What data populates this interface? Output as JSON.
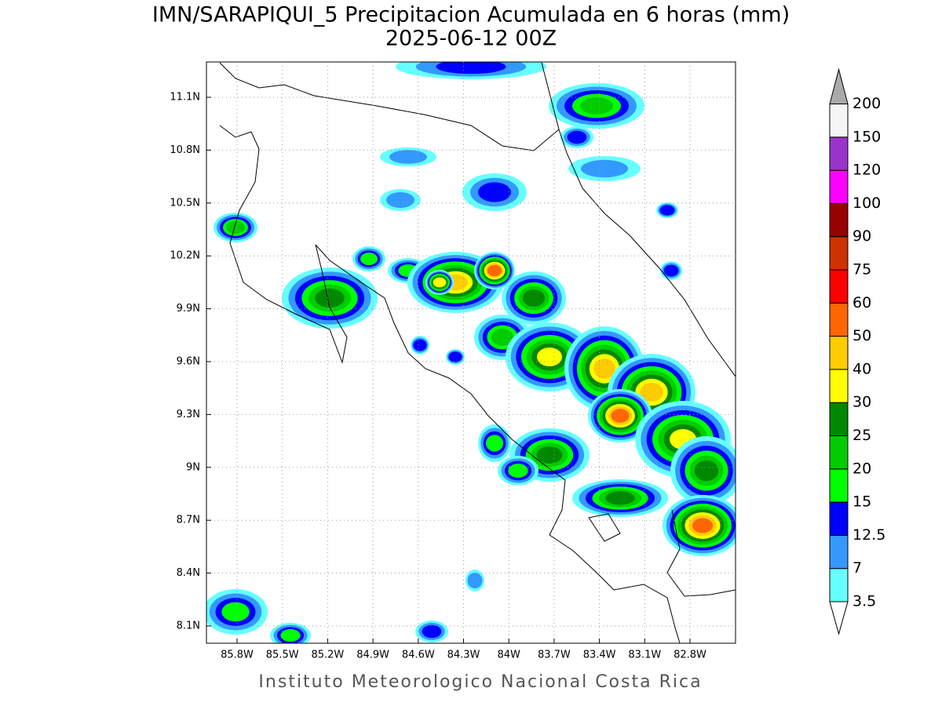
{
  "title": "IMN/SARAPIQUI_5 Precipitacion Acumulada en 6 horas (mm)",
  "subtitle": "2025-06-12 00Z",
  "lat_labels": [
    "11.1N",
    "10.8N",
    "10.5N",
    "10.2N",
    "9.9N",
    "9.6N",
    "9.3N",
    "9N",
    "8.7N",
    "8.4N",
    "8.1N"
  ],
  "lon_labels": [
    "85.8W",
    "85.5W",
    "85.2W",
    "84.9W",
    "84.6W",
    "84.3W",
    "84W",
    "83.7W",
    "83.4W",
    "83.1W",
    "82.8W"
  ],
  "colorbar": {
    "levels": [
      3.5,
      7,
      12.5,
      15,
      20,
      25,
      30,
      40,
      50,
      60,
      75,
      90,
      100,
      120,
      150,
      200
    ],
    "colors": [
      "#ffffff",
      "#66ffff",
      "#3399ff",
      "#0000ff",
      "#00ff00",
      "#00cc00",
      "#008800",
      "#ffff00",
      "#ffcc00",
      "#ff6600",
      "#ff0000",
      "#cc3300",
      "#990000",
      "#ff00ff",
      "#9933cc",
      "#f5f5f5",
      "#aaaaaa"
    ]
  },
  "footer": "Instituto Meteorologico Nacional Costa Rica"
}
